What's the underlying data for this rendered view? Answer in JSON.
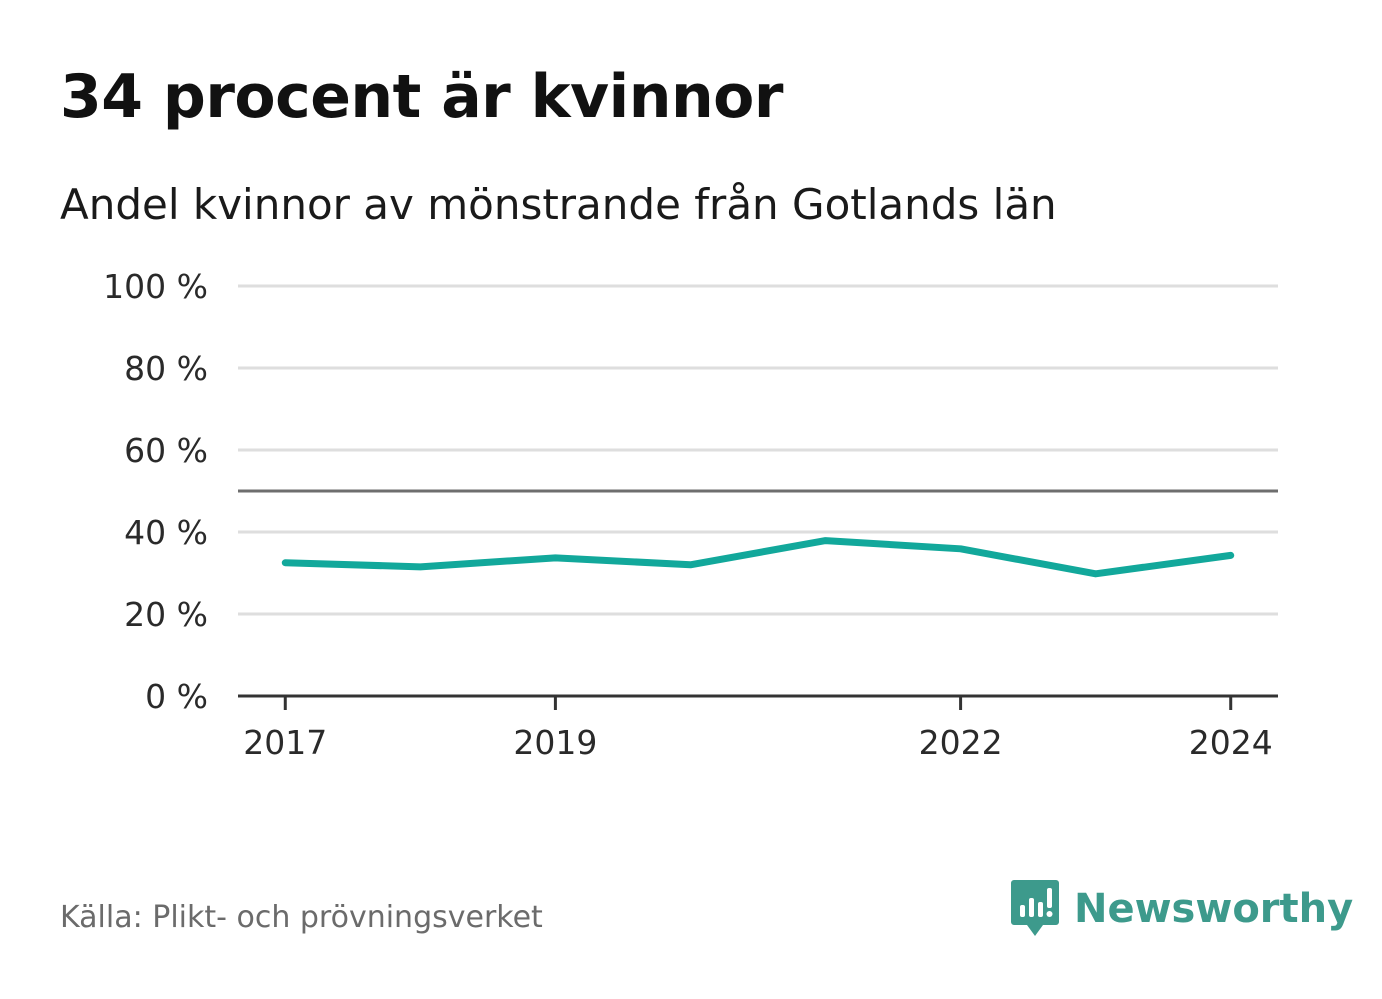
{
  "header": {
    "title": "34 procent är kvinnor",
    "subtitle": "Andel kvinnor av mönstrande från Gotlands län"
  },
  "footer": {
    "source": "Källa: Plikt- och prövningsverket",
    "brand": "Newsworthy"
  },
  "colors": {
    "line": "#12a89b",
    "grid": "#dedede",
    "reference": "#6e6e6e",
    "axis": "#333333",
    "brand": "#3d9a8c"
  },
  "chart_data": {
    "type": "line",
    "title": "34 procent är kvinnor",
    "subtitle": "Andel kvinnor av mönstrande från Gotlands län",
    "xlabel": "",
    "ylabel": "",
    "x": [
      2017,
      2018,
      2019,
      2020,
      2021,
      2022,
      2023,
      2024
    ],
    "series": [
      {
        "name": "Andel kvinnor",
        "values": [
          32.5,
          31.5,
          33.7,
          32,
          37.9,
          35.9,
          29.8,
          34.3
        ]
      }
    ],
    "ylim": [
      0,
      100
    ],
    "xlim": [
      2016.65,
      2024.35
    ],
    "yticks": [
      0,
      20,
      40,
      60,
      80,
      100
    ],
    "ytick_labels": [
      "0 %",
      "20 %",
      "40 %",
      "60 %",
      "80 %",
      "100 %"
    ],
    "xticks": [
      2017,
      2019,
      2022,
      2024
    ],
    "xtick_labels": [
      "2017",
      "2019",
      "2022",
      "2024"
    ],
    "reference_line": 50,
    "grid": true
  }
}
